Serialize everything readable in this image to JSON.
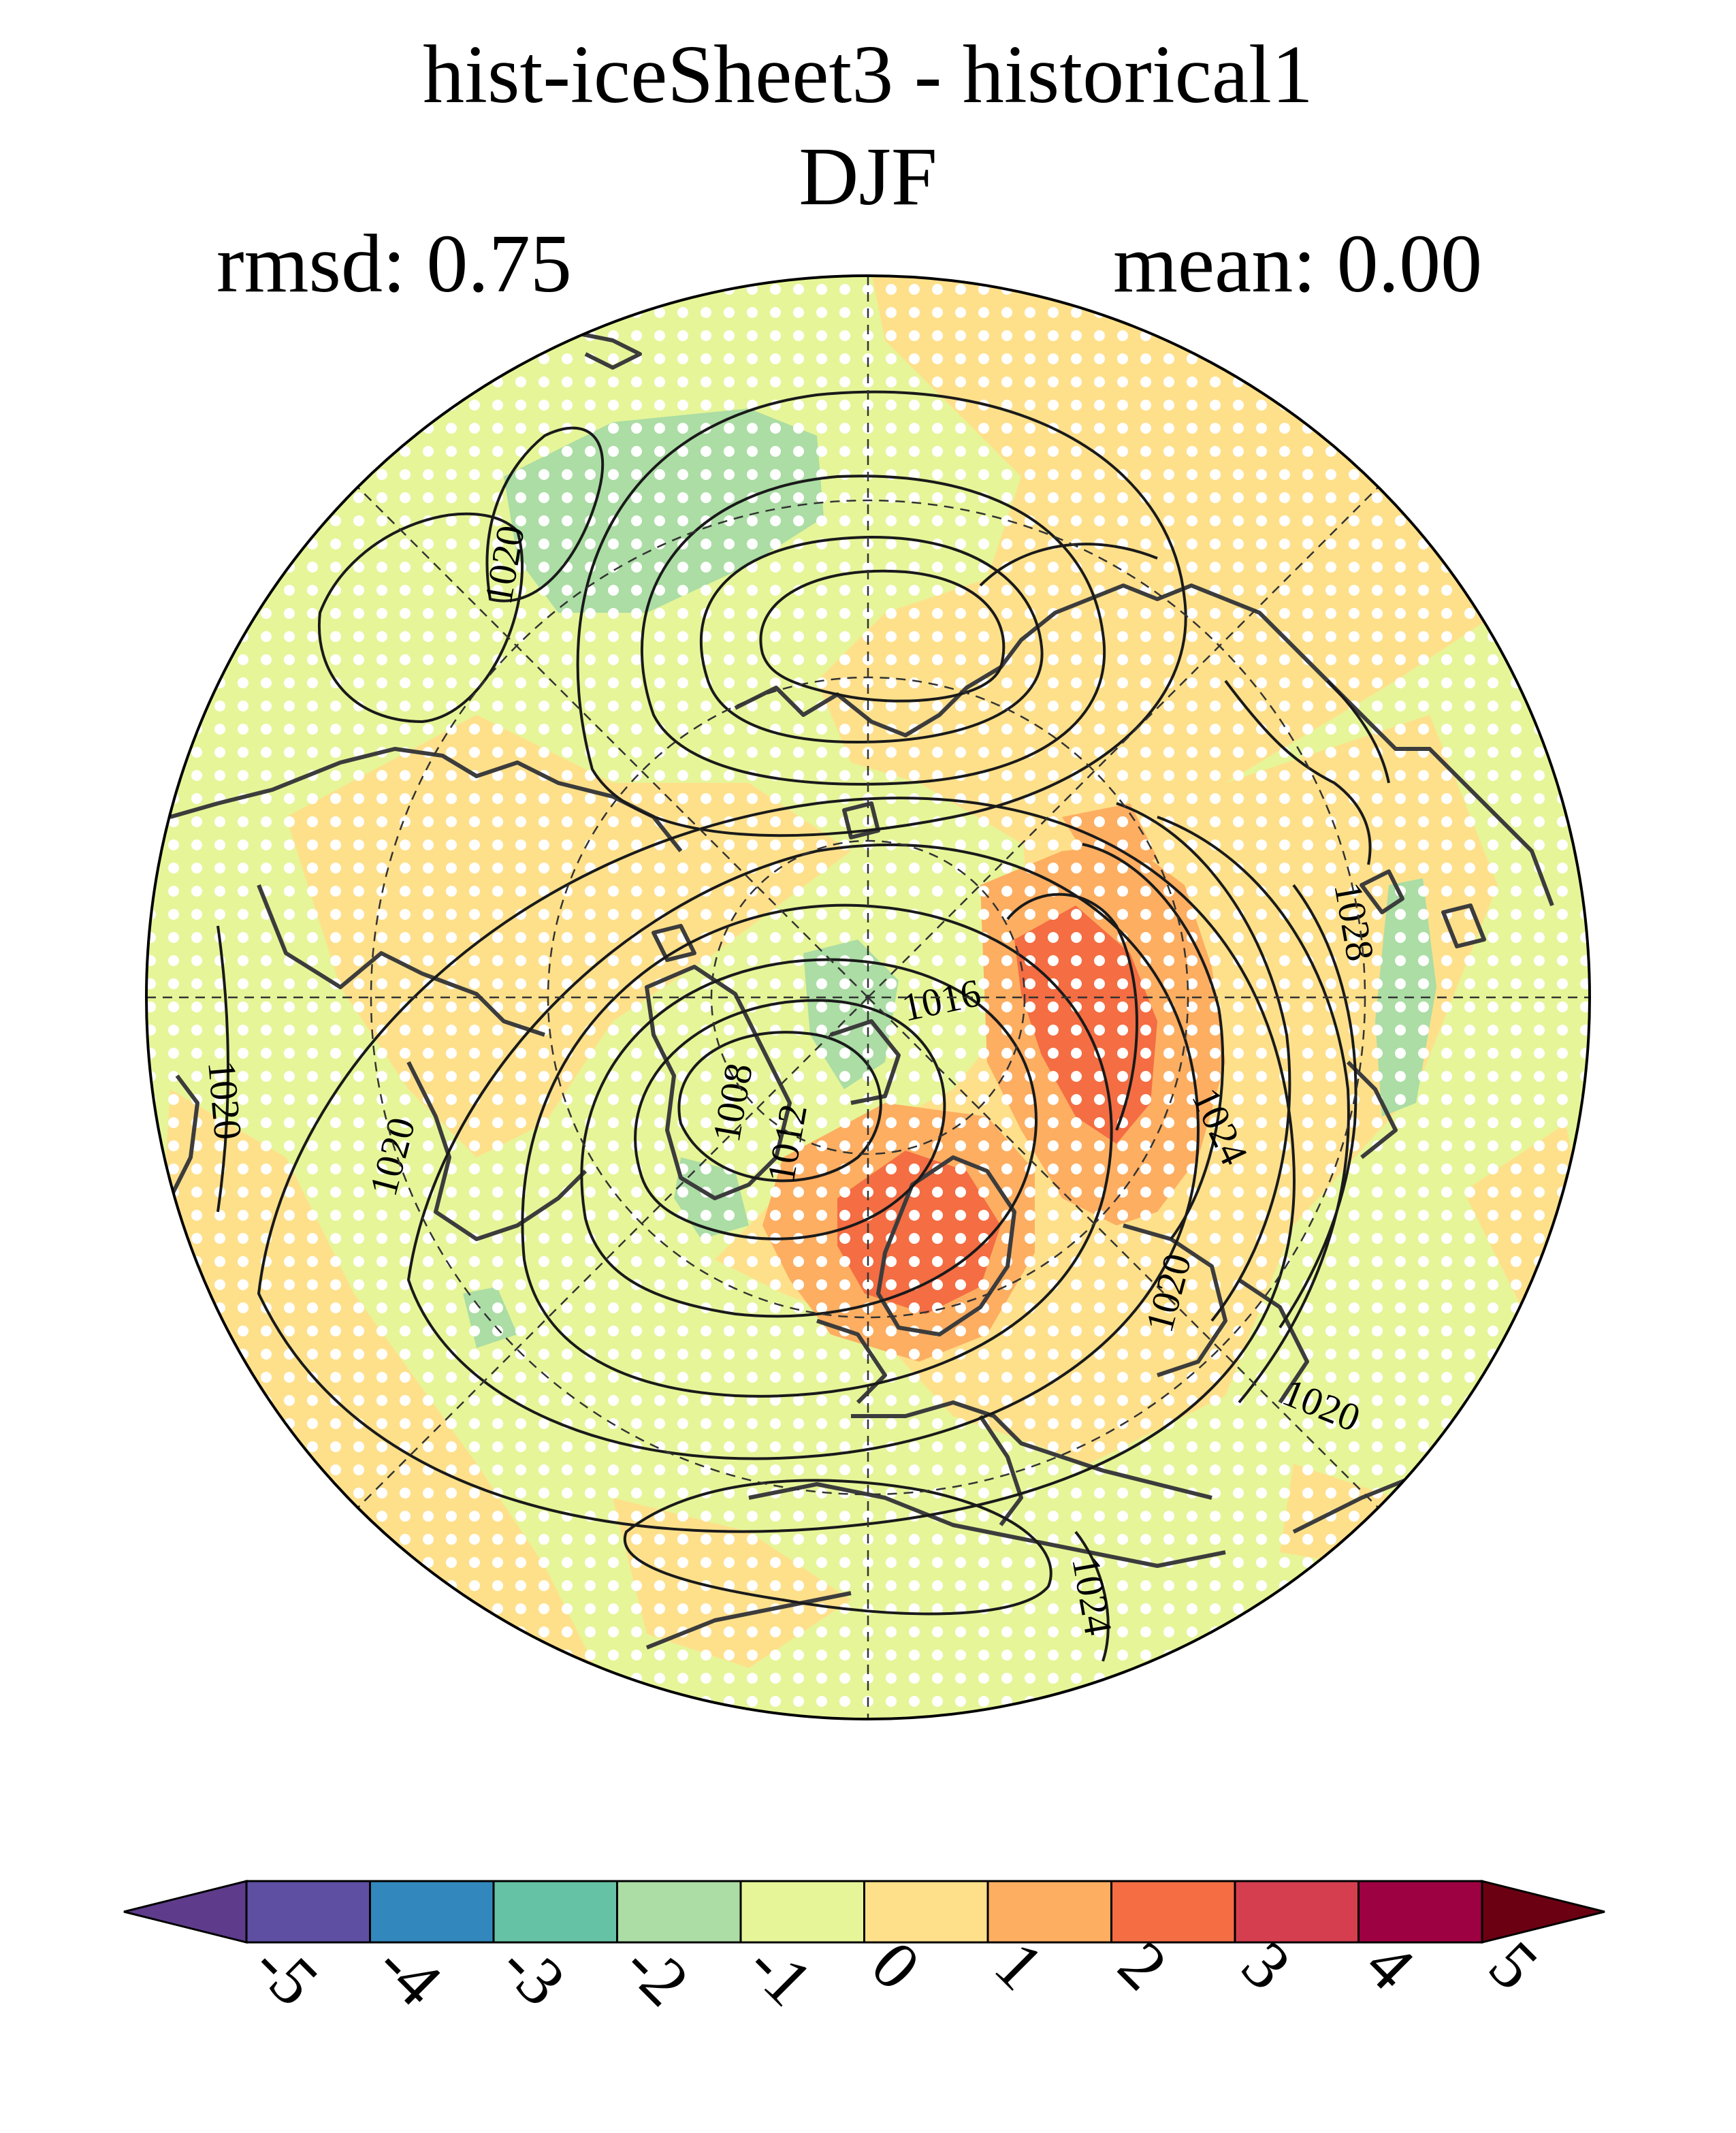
{
  "title": {
    "line1": "hist-iceSheet3 - historical1",
    "line2": "DJF",
    "rmsd": "rmsd: 0.75",
    "mean": "mean: 0.00"
  },
  "contour_labels": [
    "1020",
    "1016",
    "1008",
    "1012",
    "1020",
    "1020",
    "1028",
    "1024",
    "1020",
    "1020",
    "1024"
  ],
  "colorbar": {
    "ticks": [
      "-5",
      "-4",
      "-3",
      "-2",
      "-1",
      "0",
      "1",
      "2",
      "3",
      "4",
      "5"
    ],
    "colors": [
      "#5e3c8b",
      "#5e4fa2",
      "#3288bd",
      "#66c2a5",
      "#abdda4",
      "#e6f598",
      "#fee08b",
      "#fdae61",
      "#f46d43",
      "#d53e4f",
      "#9e0142",
      "#6b0012"
    ]
  }
}
